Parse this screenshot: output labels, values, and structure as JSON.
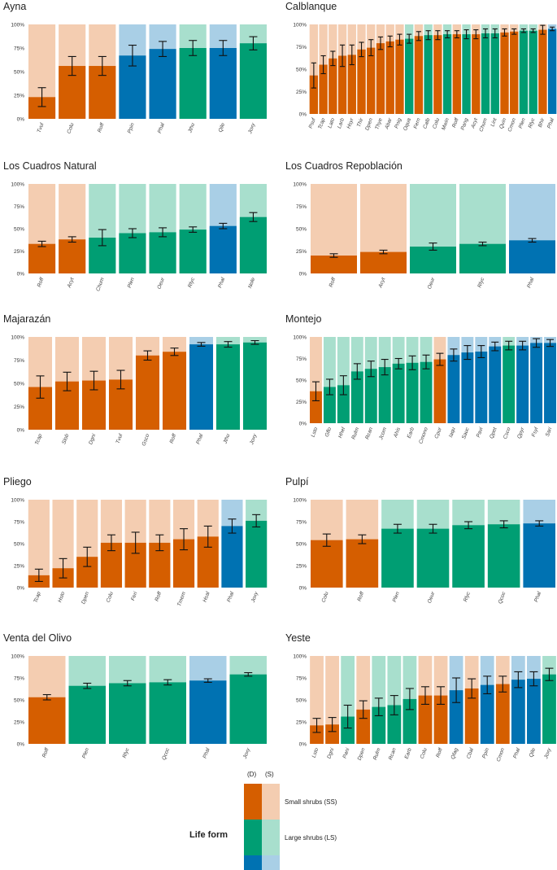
{
  "colors": {
    "SS": {
      "D": "#d55e00",
      "S": "#f4cdb1"
    },
    "LS": {
      "D": "#009e73",
      "S": "#a8dfcd"
    },
    "T": {
      "D": "#0072b2",
      "S": "#a9cfe6"
    }
  },
  "y_ticks": [
    "0%",
    "25%",
    "50%",
    "75%",
    "100%"
  ],
  "legend": {
    "title": "Life form",
    "header_d": "(D)",
    "header_s": "(S)",
    "items": [
      {
        "key": "SS",
        "label": "Small shrubs (SS)"
      },
      {
        "key": "LS",
        "label": "Large shrubs (LS)"
      },
      {
        "key": "T",
        "label": "Trees (T)"
      }
    ]
  },
  "chart_data": [
    {
      "type": "bar",
      "title": "Ayna",
      "ylim": [
        0,
        100
      ],
      "categories": [
        "Tvul",
        "Colu",
        "Roff",
        "Ppin",
        "Phal",
        "Jthu",
        "Qile",
        "Joxy"
      ],
      "groups": [
        "SS",
        "SS",
        "SS",
        "T",
        "T",
        "LS",
        "T",
        "LS"
      ],
      "values": [
        23,
        56,
        56,
        67,
        74,
        75,
        75,
        80
      ],
      "errors": [
        10,
        10,
        10,
        11,
        8,
        8,
        8,
        7
      ]
    },
    {
      "type": "bar",
      "title": "Calblanque",
      "ylim": [
        0,
        100
      ],
      "categories": [
        "Psuf",
        "Tcap",
        "Lato",
        "Larb",
        "Hsyr",
        "Thir",
        "Dpen",
        "Thye",
        "Abar",
        "Pnig",
        "Oqua",
        "Fern",
        "Calb",
        "Colu",
        "Mwin",
        "Roff",
        "Pang",
        "Acyt",
        "Chum",
        "Lint",
        "Qvin",
        "Cmon",
        "Plen",
        "Rlyc",
        "Bhir",
        "Phal"
      ],
      "groups": [
        "SS",
        "SS",
        "SS",
        "SS",
        "SS",
        "SS",
        "SS",
        "SS",
        "SS",
        "SS",
        "LS",
        "SS",
        "LS",
        "SS",
        "LS",
        "SS",
        "LS",
        "SS",
        "LS",
        "LS",
        "SS",
        "SS",
        "LS",
        "LS",
        "SS",
        "T"
      ],
      "values": [
        43,
        55,
        62,
        65,
        66,
        72,
        74,
        79,
        81,
        83,
        84,
        87,
        88,
        88,
        89,
        89,
        89,
        89,
        90,
        90,
        91,
        92,
        93,
        93,
        94,
        95
      ],
      "errors": [
        14,
        10,
        8,
        12,
        11,
        8,
        9,
        7,
        6,
        6,
        5,
        5,
        5,
        5,
        4,
        4,
        5,
        5,
        5,
        5,
        4,
        3,
        2,
        2,
        5,
        2
      ]
    },
    {
      "type": "bar",
      "title": "Los Cuadros Natural",
      "ylim": [
        0,
        100
      ],
      "categories": [
        "Roff",
        "Acyt",
        "Chum",
        "Plen",
        "Oeur",
        "Rlyc",
        "Phal",
        "Nole"
      ],
      "groups": [
        "SS",
        "SS",
        "LS",
        "LS",
        "LS",
        "LS",
        "T",
        "LS"
      ],
      "values": [
        33,
        38,
        40,
        45,
        46,
        49,
        53,
        63
      ],
      "errors": [
        3,
        3,
        9,
        5,
        5,
        3,
        3,
        5
      ]
    },
    {
      "type": "bar",
      "title": "Los Cuadros Repoblación",
      "ylim": [
        0,
        100
      ],
      "categories": [
        "Roff",
        "Acyt",
        "Oeur",
        "Rlyc",
        "Phal"
      ],
      "groups": [
        "SS",
        "SS",
        "LS",
        "LS",
        "T"
      ],
      "values": [
        20,
        24,
        30,
        33,
        37
      ],
      "errors": [
        2,
        2,
        4,
        2,
        2
      ]
    },
    {
      "type": "bar",
      "title": "Majarazán",
      "ylim": [
        0,
        100
      ],
      "categories": [
        "Tcap",
        "Slob",
        "Dgni",
        "Tvul",
        "Gsco",
        "Roff",
        "Phal",
        "Jthu",
        "Joxy"
      ],
      "groups": [
        "SS",
        "SS",
        "SS",
        "SS",
        "SS",
        "SS",
        "T",
        "LS",
        "LS"
      ],
      "values": [
        46,
        52,
        53,
        54,
        80,
        84,
        92,
        92,
        94
      ],
      "errors": [
        12,
        10,
        10,
        10,
        5,
        4,
        2,
        3,
        2
      ]
    },
    {
      "type": "bar",
      "title": "Montejo",
      "ylim": [
        0,
        100
      ],
      "categories": [
        "Lsto",
        "Gflo",
        "Hhel",
        "Rulm",
        "Rcan",
        "Jcom",
        "Ahis",
        "Earb",
        "Cmono",
        "Cpur",
        "Iaqu",
        "Sauc",
        "Pavi",
        "Qpet",
        "Csco",
        "Qpyr",
        "Fsyl",
        "Sari"
      ],
      "groups": [
        "SS",
        "LS",
        "LS",
        "LS",
        "LS",
        "LS",
        "LS",
        "LS",
        "LS",
        "SS",
        "T",
        "T",
        "T",
        "T",
        "LS",
        "T",
        "T",
        "T"
      ],
      "values": [
        37,
        42,
        44,
        60,
        63,
        65,
        69,
        70,
        71,
        74,
        79,
        82,
        83,
        89,
        90,
        90,
        93,
        93
      ],
      "errors": [
        11,
        9,
        11,
        9,
        9,
        9,
        6,
        8,
        8,
        7,
        7,
        8,
        7,
        5,
        5,
        5,
        5,
        4
      ]
    },
    {
      "type": "bar",
      "title": "Pliego",
      "ylim": [
        0,
        100
      ],
      "categories": [
        "Tcap",
        "Hsto",
        "Dpen",
        "Colu",
        "Feri",
        "Roff",
        "Tmem",
        "Hsal",
        "Phal",
        "Joxy"
      ],
      "groups": [
        "SS",
        "SS",
        "SS",
        "SS",
        "SS",
        "SS",
        "SS",
        "SS",
        "T",
        "LS"
      ],
      "values": [
        14,
        22,
        35,
        51,
        51,
        51,
        55,
        58,
        70,
        76
      ],
      "errors": [
        7,
        11,
        11,
        9,
        12,
        9,
        12,
        12,
        8,
        7
      ]
    },
    {
      "type": "bar",
      "title": "Pulpí",
      "ylim": [
        0,
        100
      ],
      "categories": [
        "Colu",
        "Roff",
        "Plen",
        "Oeur",
        "Rlyc",
        "Qcoc",
        "Phal"
      ],
      "groups": [
        "SS",
        "SS",
        "LS",
        "LS",
        "LS",
        "LS",
        "T"
      ],
      "values": [
        54,
        55,
        67,
        67,
        71,
        72,
        73
      ],
      "errors": [
        7,
        5,
        5,
        5,
        4,
        4,
        3
      ]
    },
    {
      "type": "bar",
      "title": "Venta del Olivo",
      "ylim": [
        0,
        100
      ],
      "categories": [
        "Roff",
        "Plen",
        "Rlyc",
        "Qcoc",
        "Phal",
        "Joxy"
      ],
      "groups": [
        "SS",
        "LS",
        "LS",
        "LS",
        "T",
        "LS"
      ],
      "values": [
        53,
        66,
        69,
        70,
        72,
        79
      ],
      "errors": [
        3,
        3,
        3,
        3,
        2,
        2
      ]
    },
    {
      "type": "bar",
      "title": "Yeste",
      "ylim": [
        0,
        100
      ],
      "categories": [
        "Lsto",
        "Dgni",
        "Pani",
        "Dpen",
        "Rulm",
        "Rcan",
        "Earb",
        "Colu",
        "Roff",
        "Qfag",
        "Cbal",
        "Ppin",
        "Cmon",
        "Phal",
        "Qile",
        "Joxy"
      ],
      "groups": [
        "SS",
        "SS",
        "LS",
        "SS",
        "LS",
        "LS",
        "LS",
        "SS",
        "SS",
        "T",
        "SS",
        "T",
        "SS",
        "T",
        "T",
        "LS"
      ],
      "values": [
        21,
        22,
        31,
        39,
        42,
        44,
        51,
        55,
        55,
        61,
        63,
        67,
        68,
        73,
        74,
        79
      ],
      "errors": [
        8,
        8,
        13,
        10,
        10,
        11,
        12,
        10,
        10,
        14,
        11,
        10,
        9,
        9,
        8,
        7
      ]
    }
  ]
}
